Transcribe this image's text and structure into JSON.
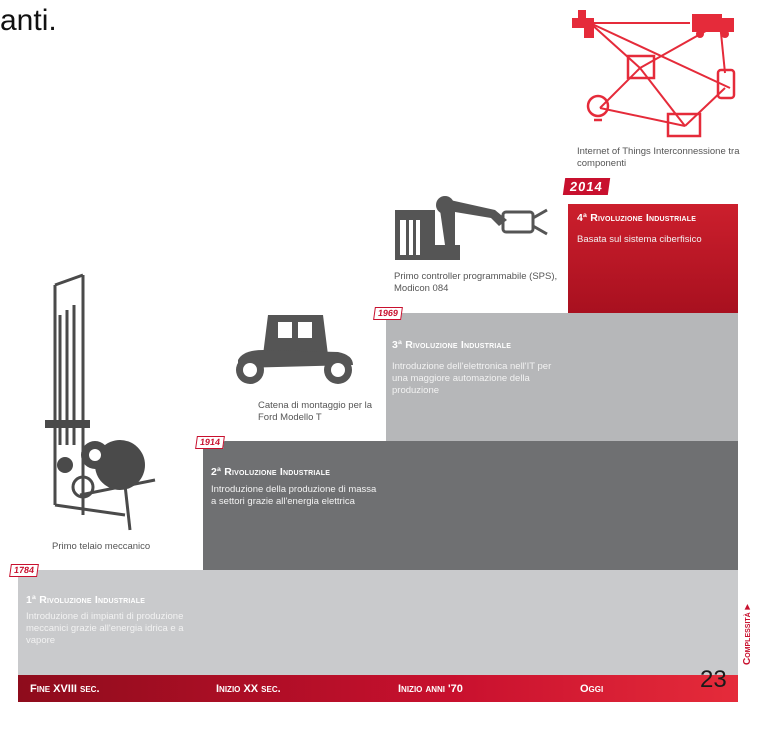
{
  "heading_fragment": "anti.",
  "revolutions": [
    {
      "year": "1784",
      "title": "1ª Rivoluzione Industriale",
      "description": "Introduzione di impianti di produzione meccanici grazie all'energia idrica e a vapore",
      "caption": "Primo telaio meccanico"
    },
    {
      "year": "1914",
      "title": "2ª Rivoluzione Industriale",
      "description": "Introduzione della produzione di massa a settori grazie all'energia elettrica",
      "caption": "Catena di montaggio per la Ford Modello T"
    },
    {
      "year": "1969",
      "title": "3ª Rivoluzione Industriale",
      "description": "Introduzione dell'elettronica nell'IT per una maggiore automazione della produzione",
      "caption": "Primo controller programmabile (SPS), Modicon 084"
    },
    {
      "year": "2014",
      "title": "4ª Rivoluzione Industriale",
      "description": "Basata sul sistema ciberfisico",
      "caption": "Internet of Things Interconnessione tra componenti"
    }
  ],
  "eras": [
    "Fine XVIII sec.",
    "Inizio XX sec.",
    "Inizio anni '70",
    "Oggi"
  ],
  "axis_label": "Complessità ▸",
  "page_number": "23",
  "colors": {
    "accent": "#c8102e",
    "dark_step": "#6f7072",
    "mid_step": "#b6b7b9",
    "light_step": "#c9cacc"
  }
}
